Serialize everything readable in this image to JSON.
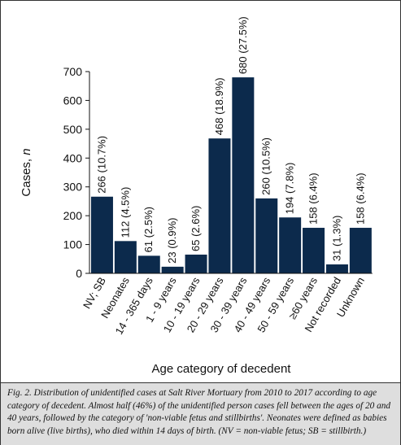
{
  "chart_data": {
    "type": "bar",
    "title": "",
    "xlabel": "Age category of decedent",
    "ylabel": "Cases, n",
    "ylim": [
      0,
      700
    ],
    "yticks": [
      0,
      100,
      200,
      300,
      400,
      500,
      600,
      700
    ],
    "grid": false,
    "bar_color": "#0c2a4c",
    "categories": [
      "NV; SB",
      "Neonates",
      "14 - 365 days",
      "1 - 9 years",
      "10 - 19 years",
      "20 - 29 years",
      "30 - 39 years",
      "40 - 49 years",
      "50 - 59 years",
      "≥60 years",
      "Not recorded",
      "Unknown"
    ],
    "values": [
      266,
      112,
      61,
      23,
      65,
      468,
      680,
      260,
      194,
      158,
      31,
      158
    ],
    "data_labels": [
      "266 (10.7%)",
      "112 (4.5%)",
      "61 (2.5%)",
      "23 (0.9%)",
      "65 (2.6%)",
      "468 (18.9%)",
      "680 (27.5%)",
      "260 (10.5%)",
      "194 (7.8%)",
      "158 (6.4%)",
      "31 (1.3%)",
      "158 (6.4%)"
    ]
  },
  "caption": "Fig. 2. Distribution of unidentified cases at Salt River Mortuary from 2010 to 2017 according to age category of decedent. Almost half (46%) of the unidentified person cases fell between the ages of 20 and 40 years, followed by the category of 'non-viable fetus and stillbirths'. Neonates were defined as babies born alive (live births), who died within 14 days of birth. (NV = non-viable fetus; SB = stillbirth.)"
}
